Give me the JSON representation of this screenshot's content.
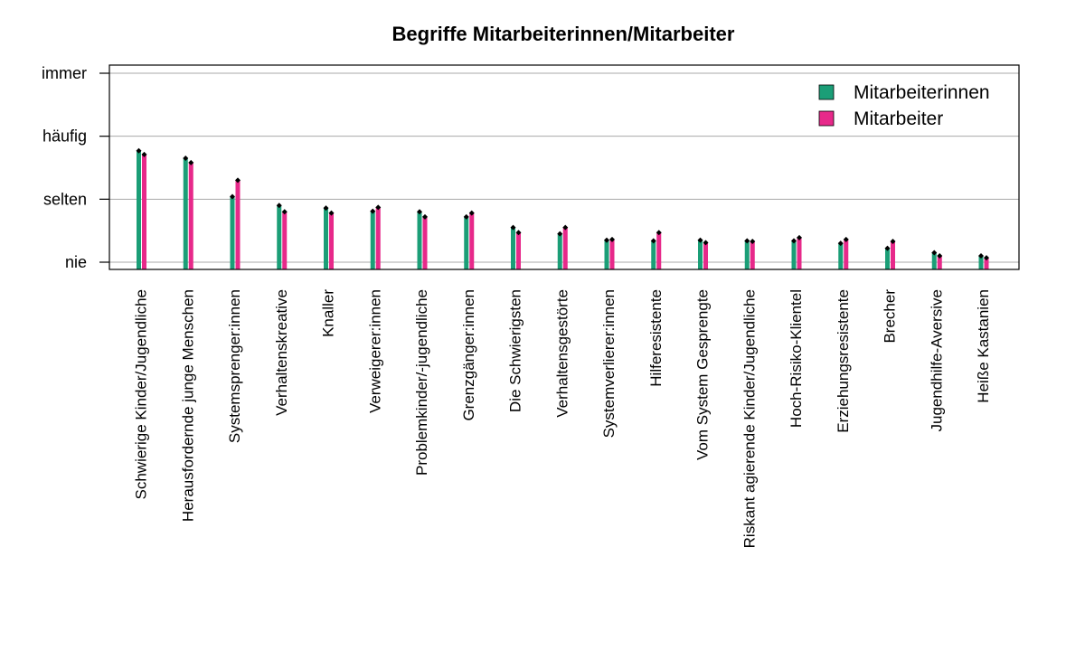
{
  "chart_data": {
    "type": "bar",
    "title": "Begriffe Mitarbeiterinnen/Mitarbeiter",
    "xlabel": "",
    "ylabel": "",
    "ylim": [
      0,
      3
    ],
    "y_ticks": [
      {
        "value": 0,
        "label": "nie"
      },
      {
        "value": 1,
        "label": "selten"
      },
      {
        "value": 2,
        "label": "häufig"
      },
      {
        "value": 3,
        "label": "immer"
      }
    ],
    "grid": true,
    "legend_position": "top-right",
    "categories": [
      "Schwierige Kinder/Jugendliche",
      "Herausfordernde junge Menschen",
      "Systemsprenger:innen",
      "Verhaltenskreative",
      "Knaller",
      "Verweigerer:innen",
      "Problemkinder/-jugendliche",
      "Grenzgänger:innen",
      "Die Schwierigsten",
      "Verhaltensgestörte",
      "Systemverlierer:innen",
      "Hilferesistente",
      "Vom System Gesprengte",
      "Riskant agierende Kinder/Jugendliche",
      "Hoch-Risiko-Klientel",
      "Erziehungsresistente",
      "Brecher",
      "Jugendhilfe-Aversive",
      "Heiße Kastanien"
    ],
    "series": [
      {
        "name": "Mitarbeiterinnen",
        "color": "#1b9e77",
        "values": [
          1.77,
          1.65,
          1.04,
          0.9,
          0.86,
          0.81,
          0.8,
          0.72,
          0.55,
          0.45,
          0.35,
          0.34,
          0.35,
          0.34,
          0.34,
          0.3,
          0.22,
          0.15,
          0.1
        ]
      },
      {
        "name": "Mitarbeiter",
        "color": "#e7298a",
        "values": [
          1.71,
          1.58,
          1.3,
          0.8,
          0.78,
          0.87,
          0.72,
          0.78,
          0.47,
          0.55,
          0.36,
          0.47,
          0.31,
          0.33,
          0.39,
          0.36,
          0.33,
          0.1,
          0.07
        ]
      }
    ]
  }
}
